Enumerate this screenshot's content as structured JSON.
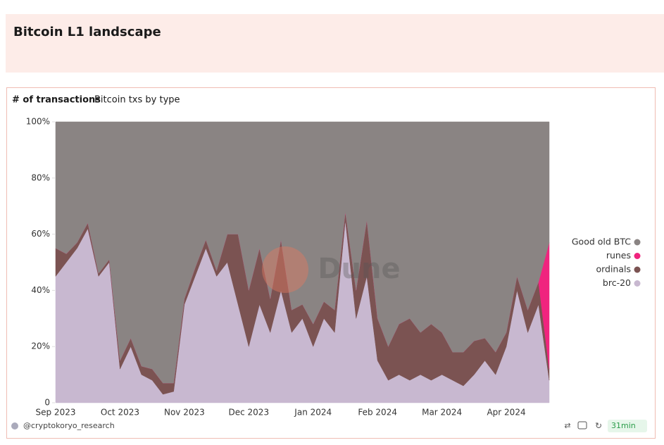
{
  "dashboard": {
    "title": "Bitcoin L1 landscape",
    "author": "@cryptokoryo_research",
    "refresh": "31min",
    "watermark": "Dune"
  },
  "chart_data": {
    "type": "area",
    "stacked": true,
    "title": "# of transactions",
    "subtitle": "Bitcoin txs by type",
    "categories": [
      "Sep 2023",
      null,
      null,
      null,
      null,
      null,
      "Oct 2023",
      null,
      null,
      null,
      null,
      null,
      "Nov 2023",
      null,
      null,
      null,
      null,
      null,
      "Dec 2023",
      null,
      null,
      null,
      null,
      null,
      "Jan 2024",
      null,
      null,
      null,
      null,
      null,
      "Feb 2024",
      null,
      null,
      null,
      null,
      null,
      "Mar 2024",
      null,
      null,
      null,
      null,
      null,
      "Apr 2024",
      null,
      null,
      null,
      null
    ],
    "series": [
      {
        "name": "brc-20",
        "color": "#c8b8d0",
        "values": [
          45,
          50,
          55,
          62,
          45,
          50,
          12,
          20,
          10,
          8,
          3,
          4,
          35,
          45,
          55,
          45,
          50,
          35,
          20,
          35,
          25,
          40,
          25,
          30,
          20,
          30,
          25,
          65,
          30,
          45,
          15,
          8,
          10,
          8,
          10,
          8,
          10,
          8,
          6,
          10,
          15,
          10,
          20,
          40,
          25,
          35,
          8
        ]
      },
      {
        "name": "ordinals",
        "color": "#7b5352",
        "values": [
          10,
          3,
          2,
          2,
          1,
          1,
          3,
          3,
          3,
          4,
          4,
          3,
          2,
          3,
          3,
          2,
          10,
          25,
          20,
          20,
          12,
          18,
          8,
          5,
          8,
          6,
          8,
          3,
          10,
          20,
          15,
          12,
          18,
          22,
          15,
          20,
          15,
          10,
          12,
          12,
          8,
          8,
          5,
          5,
          8,
          8,
          4
        ]
      },
      {
        "name": "runes",
        "color": "#f0247e",
        "values": [
          0,
          0,
          0,
          0,
          0,
          0,
          0,
          0,
          0,
          0,
          0,
          0,
          0,
          0,
          0,
          0,
          0,
          0,
          0,
          0,
          0,
          0,
          0,
          0,
          0,
          0,
          0,
          0,
          0,
          0,
          0,
          0,
          0,
          0,
          0,
          0,
          0,
          0,
          0,
          0,
          0,
          0,
          0,
          0,
          0,
          0,
          45
        ]
      },
      {
        "name": "Good old BTC",
        "color": "#8a8483",
        "values": [
          45,
          47,
          43,
          36,
          54,
          49,
          85,
          77,
          87,
          88,
          93,
          93,
          63,
          52,
          42,
          53,
          40,
          40,
          60,
          45,
          63,
          42,
          67,
          65,
          72,
          64,
          67,
          32,
          60,
          35,
          70,
          80,
          72,
          70,
          75,
          72,
          75,
          82,
          82,
          78,
          77,
          82,
          75,
          55,
          67,
          57,
          43
        ]
      }
    ],
    "ylim": [
      0,
      100
    ],
    "yticks": [
      0,
      {
        "value": 20,
        "label": "20%"
      },
      {
        "value": 40,
        "label": "40%"
      },
      {
        "value": 60,
        "label": "60%"
      },
      {
        "value": 80,
        "label": "80%"
      },
      {
        "value": 100,
        "label": "100%"
      }
    ],
    "grid": false,
    "legend": "right"
  }
}
